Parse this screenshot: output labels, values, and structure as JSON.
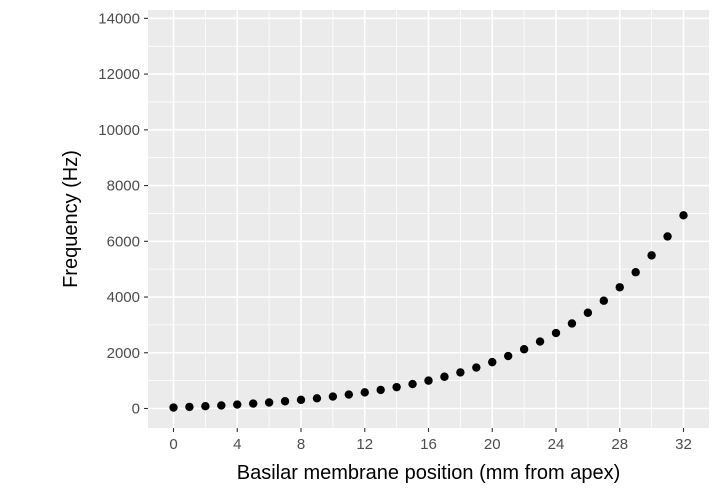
{
  "chart_data": {
    "type": "scatter",
    "xlabel": "Basilar membrane position (mm from apex)",
    "ylabel": "Frequency (Hz)",
    "xlim": [
      -1.6,
      33.6
    ],
    "ylim": [
      -700,
      14300
    ],
    "x_ticks": [
      0,
      4,
      8,
      12,
      16,
      20,
      24,
      28,
      32
    ],
    "y_ticks": [
      0,
      2000,
      4000,
      6000,
      8000,
      10000,
      12000,
      14000
    ],
    "grid": true,
    "colors": {
      "panel": "#ebebeb",
      "grid": "#ffffff",
      "point": "#000000"
    },
    "points": [
      {
        "x": 0,
        "y": 35
      },
      {
        "x": 1,
        "y": 57
      },
      {
        "x": 2,
        "y": 82
      },
      {
        "x": 3,
        "y": 110
      },
      {
        "x": 4,
        "y": 141
      },
      {
        "x": 5,
        "y": 176
      },
      {
        "x": 6,
        "y": 215
      },
      {
        "x": 7,
        "y": 260
      },
      {
        "x": 8,
        "y": 310
      },
      {
        "x": 9,
        "y": 366
      },
      {
        "x": 10,
        "y": 429
      },
      {
        "x": 11,
        "y": 499
      },
      {
        "x": 12,
        "y": 578
      },
      {
        "x": 13,
        "y": 667
      },
      {
        "x": 14,
        "y": 766
      },
      {
        "x": 15,
        "y": 876
      },
      {
        "x": 16,
        "y": 1000
      },
      {
        "x": 17,
        "y": 1139
      },
      {
        "x": 18,
        "y": 1295
      },
      {
        "x": 19,
        "y": 1469
      },
      {
        "x": 20,
        "y": 1664
      },
      {
        "x": 21,
        "y": 1882
      },
      {
        "x": 22,
        "y": 2127
      },
      {
        "x": 23,
        "y": 2401
      },
      {
        "x": 24,
        "y": 2708
      },
      {
        "x": 25,
        "y": 3051
      },
      {
        "x": 26,
        "y": 3436
      },
      {
        "x": 27,
        "y": 3867
      },
      {
        "x": 28,
        "y": 4350
      },
      {
        "x": 29,
        "y": 4890
      },
      {
        "x": 30,
        "y": 5495
      },
      {
        "x": 31,
        "y": 6173
      },
      {
        "x": 32,
        "y": 6932
      }
    ]
  }
}
